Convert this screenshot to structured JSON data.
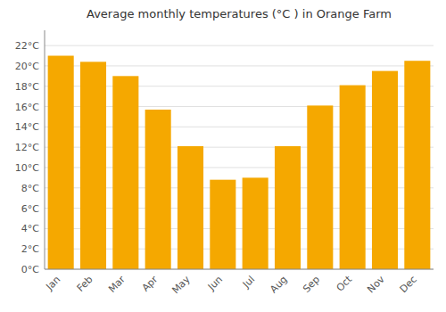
{
  "chart_data": {
    "type": "bar",
    "title": "Average monthly temperatures (°C ) in Orange Farm",
    "categories": [
      "Jan",
      "Feb",
      "Mar",
      "Apr",
      "May",
      "Jun",
      "Jul",
      "Aug",
      "Sep",
      "Oct",
      "Nov",
      "Dec"
    ],
    "values": [
      21.0,
      20.4,
      19.0,
      15.7,
      12.1,
      8.8,
      9.0,
      12.1,
      16.1,
      18.1,
      19.5,
      20.5
    ],
    "color": "#F5A800",
    "ylim": [
      0,
      23.5
    ],
    "yticks": [
      {
        "value": 0,
        "label": "0°C"
      },
      {
        "value": 2,
        "label": "2°C"
      },
      {
        "value": 4,
        "label": "4°C"
      },
      {
        "value": 6,
        "label": "6°C"
      },
      {
        "value": 8,
        "label": "8°C"
      },
      {
        "value": 10,
        "label": "10°C"
      },
      {
        "value": 12,
        "label": "12°C"
      },
      {
        "value": 14,
        "label": "14°C"
      },
      {
        "value": 16,
        "label": "16°C"
      },
      {
        "value": 18,
        "label": "18°C"
      },
      {
        "value": 20,
        "label": "20°C"
      },
      {
        "value": 22,
        "label": "22°C"
      }
    ],
    "grid": true
  }
}
